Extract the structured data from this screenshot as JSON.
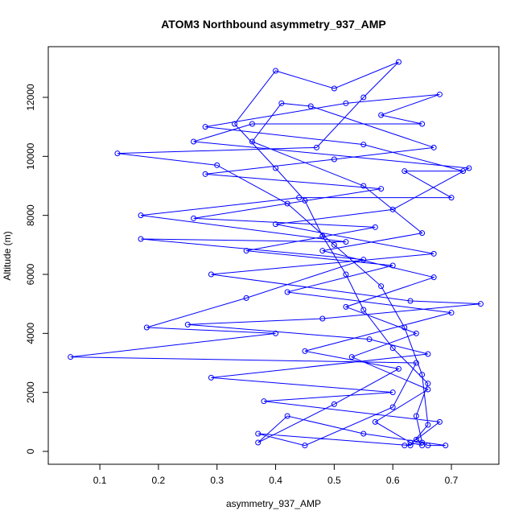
{
  "chart_data": {
    "type": "line",
    "title": "ATOM3 Northbound asymmetry_937_AMP",
    "xlabel": "asymmetry_937_AMP",
    "ylabel": "Altitude (m)",
    "xlim": [
      0.012,
      0.781
    ],
    "ylim": [
      -436,
      13718
    ],
    "xticks": [
      0.1,
      0.2,
      0.3,
      0.4,
      0.5,
      0.6,
      0.7
    ],
    "yticks": [
      0,
      2000,
      4000,
      6000,
      8000,
      10000,
      12000
    ],
    "x": [
      0.62,
      0.65,
      0.64,
      0.66,
      0.6,
      0.55,
      0.52,
      0.48,
      0.45,
      0.4,
      0.33,
      0.4,
      0.5,
      0.61,
      0.55,
      0.47,
      0.13,
      0.3,
      0.42,
      0.5,
      0.58,
      0.62,
      0.65,
      0.66,
      0.63,
      0.37,
      0.45,
      0.6,
      0.64,
      0.05,
      0.4,
      0.18,
      0.35,
      0.55,
      0.17,
      0.52,
      0.17,
      0.44,
      0.7,
      0.62,
      0.72,
      0.55,
      0.28,
      0.52,
      0.68,
      0.58,
      0.65,
      0.36,
      0.26,
      0.73,
      0.6,
      0.4,
      0.67,
      0.29,
      0.63,
      0.75,
      0.48,
      0.25,
      0.56,
      0.66,
      0.29,
      0.6,
      0.38,
      0.68,
      0.64,
      0.66,
      0.69,
      0.55,
      0.42,
      0.37,
      0.5,
      0.61,
      0.45,
      0.7,
      0.42,
      0.6,
      0.35,
      0.57,
      0.26,
      0.58,
      0.28,
      0.5,
      0.67,
      0.46,
      0.41,
      0.36,
      0.55,
      0.65,
      0.48,
      0.67,
      0.52,
      0.64,
      0.53,
      0.66,
      0.57,
      0.63,
      0.65
    ],
    "series": [
      {
        "color": "#0000ff",
        "values": [
          200,
          300,
          1200,
          2300,
          3500,
          4800,
          6000,
          7300,
          8500,
          9600,
          11100,
          12900,
          12300,
          13200,
          12000,
          10300,
          10100,
          9700,
          8400,
          7000,
          5600,
          4200,
          2600,
          900,
          200,
          600,
          200,
          1500,
          3000,
          3200,
          4000,
          4200,
          5200,
          6500,
          7200,
          7100,
          8000,
          8600,
          8600,
          9500,
          9500,
          10400,
          11000,
          11800,
          12100,
          11400,
          11100,
          11100,
          10500,
          9600,
          8200,
          7700,
          6700,
          6000,
          5100,
          5000,
          4500,
          4300,
          3800,
          3300,
          2500,
          2000,
          1700,
          1000,
          400,
          200,
          200,
          600,
          1200,
          300,
          1600,
          2800,
          3400,
          4700,
          5400,
          6300,
          6800,
          7600,
          7900,
          8900,
          9400,
          9900,
          10300,
          11700,
          11800,
          10500,
          9000,
          7400,
          6800,
          5900,
          4900,
          4000,
          3200,
          2100,
          1000,
          300,
          200
        ]
      }
    ]
  }
}
